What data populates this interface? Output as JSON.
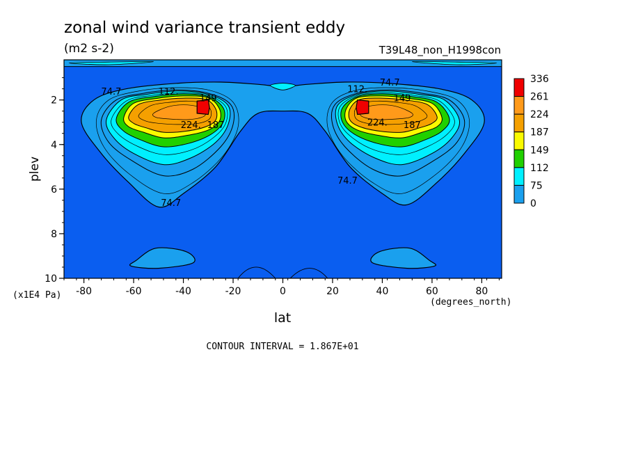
{
  "chart_data": {
    "type": "heatmap",
    "title": "zonal wind variance transient eddy",
    "subtitle": "(m2 s-2)",
    "experiment": "T39L48_non_H1998con",
    "xlabel": "lat",
    "x_units": "(degrees_north)",
    "ylabel": "plev",
    "y_units": "(x1E4 Pa)",
    "xlim": [
      -88,
      88
    ],
    "ylim": [
      10,
      0.2
    ],
    "x_ticks": [
      "-80",
      "-60",
      "-40",
      "-20",
      "0",
      "20",
      "40",
      "60",
      "80"
    ],
    "x_tick_values": [
      -80,
      -60,
      -40,
      -20,
      0,
      20,
      40,
      60,
      80
    ],
    "y_ticks": [
      "2",
      "4",
      "6",
      "8",
      "10"
    ],
    "y_tick_values": [
      2,
      4,
      6,
      8,
      10
    ],
    "contour_interval_text": "CONTOUR INTERVAL = 1.867E+01",
    "color_levels": [
      {
        "label": "0",
        "color": "#0a5ef0"
      },
      {
        "label": "75",
        "color": "#1aa0ee"
      },
      {
        "label": "112",
        "color": "#00f0ff"
      },
      {
        "label": "149",
        "color": "#20d000"
      },
      {
        "label": "187",
        "color": "#fafa00"
      },
      {
        "label": "224",
        "color": "#f5a000"
      },
      {
        "label": "261",
        "color": "#ff9a1a"
      },
      {
        "label": "336",
        "color": "#f00000"
      }
    ],
    "legend_labels": [
      "336",
      "261",
      "224",
      "187",
      "149",
      "112",
      "75",
      "0"
    ],
    "contour_labels": [
      {
        "text": "74.7",
        "lat": -69,
        "p": 1.6
      },
      {
        "text": "112.",
        "lat": -46,
        "p": 1.6
      },
      {
        "text": "149",
        "lat": -30,
        "p": 1.9
      },
      {
        "text": "224.",
        "lat": -37,
        "p": 3.1
      },
      {
        "text": "187",
        "lat": -27,
        "p": 3.1
      },
      {
        "text": "74.7",
        "lat": -45,
        "p": 6.6
      },
      {
        "text": "112.",
        "lat": 30,
        "p": 1.5
      },
      {
        "text": "74.7",
        "lat": 43,
        "p": 1.2
      },
      {
        "text": "149",
        "lat": 48,
        "p": 1.9
      },
      {
        "text": "224.",
        "lat": 38,
        "p": 3.0
      },
      {
        "text": "187",
        "lat": 52,
        "p": 3.1
      },
      {
        "text": "74.7",
        "lat": 26,
        "p": 5.6
      }
    ],
    "jets": [
      {
        "name": "southern",
        "center_lat": -32,
        "center_p": 2.6,
        "peak": 336
      },
      {
        "name": "northern",
        "center_lat": 32,
        "center_p": 2.6,
        "peak": 336
      }
    ]
  }
}
